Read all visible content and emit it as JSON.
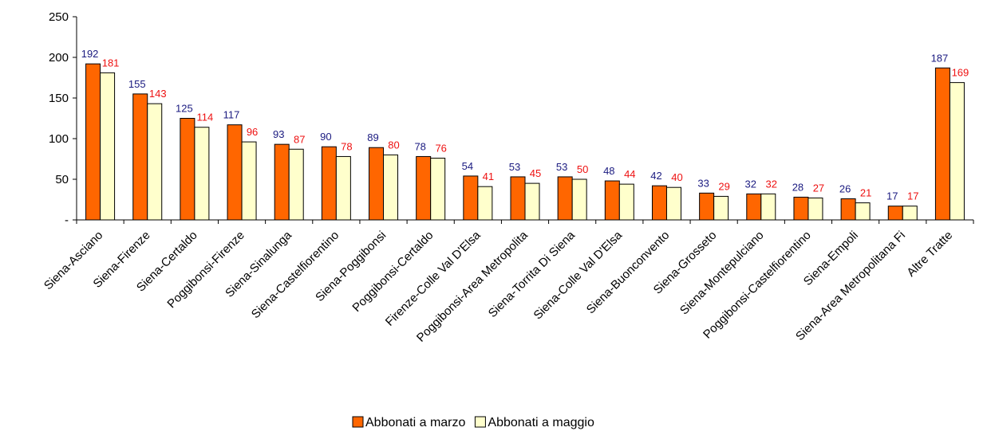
{
  "chart_data": {
    "type": "bar",
    "categories": [
      "Siena-Asciano",
      "Siena-Firenze",
      "Siena-Certaldo",
      "Poggibonsi-Firenze",
      "Siena-Sinalunga",
      "Siena-Castelfiorentino",
      "Siena-Poggibonsi",
      "Poggibonsi-Certaldo",
      "Firenze-Colle Val D'Elsa",
      "Poggibonsi-Area Metropolita",
      "Siena-Torrita Di Siena",
      "Siena-Colle Val D'Elsa",
      "Siena-Buonconvento",
      "Siena-Grosseto",
      "Siena-Montepulciano",
      "Poggibonsi-Castelfiorentino",
      "Siena-Empoli",
      "Siena-Area Metropolitana Fi",
      "Altre Tratte"
    ],
    "series": [
      {
        "name": "Abbonati a marzo",
        "color": "#ff6600",
        "values": [
          192,
          155,
          125,
          117,
          93,
          90,
          89,
          78,
          54,
          53,
          53,
          48,
          42,
          33,
          32,
          28,
          26,
          17,
          187
        ]
      },
      {
        "name": "Abbonati a maggio",
        "color": "#ffffcc",
        "values": [
          181,
          143,
          114,
          96,
          87,
          78,
          80,
          76,
          41,
          45,
          50,
          44,
          40,
          29,
          32,
          27,
          21,
          17,
          169
        ]
      }
    ],
    "y_ticks": [
      {
        "value": 0,
        "label": "-"
      },
      {
        "value": 50,
        "label": "50"
      },
      {
        "value": 100,
        "label": "100"
      },
      {
        "value": 150,
        "label": "150"
      },
      {
        "value": 200,
        "label": "200"
      },
      {
        "value": 250,
        "label": "250"
      }
    ],
    "ylim": [
      0,
      250
    ],
    "legend_position": "bottom",
    "grid": false,
    "label_colors": {
      "series_0": "#1a1a80",
      "series_1": "#ee1111"
    }
  }
}
